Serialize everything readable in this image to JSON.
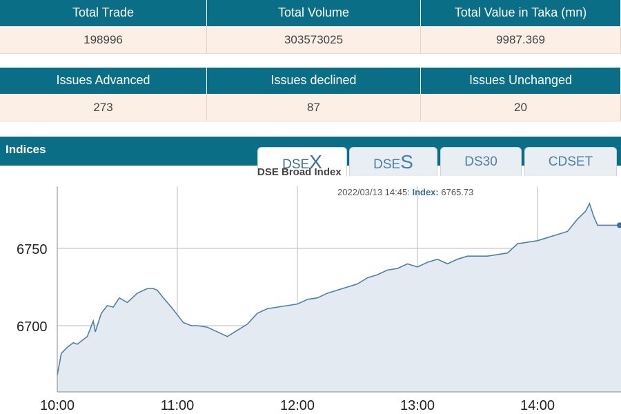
{
  "summary": {
    "headers": [
      "Total Trade",
      "Total Volume",
      "Total Value in Taka (mn)"
    ],
    "values": [
      "198996",
      "303573025",
      "9987.369"
    ]
  },
  "issues": {
    "headers": [
      "Issues Advanced",
      "Issues declined",
      "Issues Unchanged"
    ],
    "values": [
      "273",
      "87",
      "20"
    ]
  },
  "indices": {
    "title": "Indices",
    "tabs": [
      {
        "prefix": "DSE",
        "suffix": "X",
        "active": true
      },
      {
        "prefix": "DSE",
        "suffix": "S",
        "active": false
      },
      {
        "prefix": "DS30",
        "suffix": "",
        "active": false
      },
      {
        "prefix": "CDSET",
        "suffix": "",
        "active": false
      }
    ]
  },
  "tooltip": {
    "time": "2022/03/13 14:45:",
    "label": "Index:",
    "value": "6765.73"
  },
  "colors": {
    "header_bg": "#0a6f86",
    "cell_bg": "#fcf0e6",
    "line": "#4a7fb2",
    "area": "#e4eaf2"
  },
  "chart_data": {
    "type": "area",
    "title": "DSE Broad Index",
    "x_ticks": [
      "10:00",
      "11:00",
      "12:00",
      "13:00",
      "14:00"
    ],
    "y_ticks": [
      6700,
      6750
    ],
    "xlim": [
      "10:00",
      "14:45"
    ],
    "ylim": [
      6665,
      6785
    ],
    "grid": true,
    "series": [
      {
        "x": [
          "10:00",
          "10:02",
          "10:05",
          "10:08",
          "10:10",
          "10:15",
          "10:18",
          "10:19",
          "10:20",
          "10:22",
          "10:25",
          "10:28",
          "10:31",
          "10:35",
          "10:40",
          "10:45",
          "10:48",
          "10:50",
          "10:53",
          "10:57",
          "11:00",
          "11:03",
          "11:07",
          "11:10",
          "11:15",
          "11:20",
          "11:25",
          "11:30",
          "11:35",
          "11:40",
          "11:45",
          "11:50",
          "11:55",
          "12:00",
          "12:05",
          "12:10",
          "12:15",
          "12:20",
          "12:25",
          "12:30",
          "12:35",
          "12:40",
          "12:45",
          "12:50",
          "12:55",
          "13:00",
          "13:05",
          "13:10",
          "13:15",
          "13:20",
          "13:25",
          "13:30",
          "13:35",
          "13:40",
          "13:45",
          "13:50",
          "13:55",
          "14:00",
          "14:05",
          "14:10",
          "14:15",
          "14:20",
          "14:24",
          "14:26",
          "14:28",
          "14:30",
          "14:35",
          "14:40",
          "14:45"
        ],
        "values": [
          6668,
          6682,
          6686,
          6689,
          6688,
          6693,
          6703,
          6696,
          6700,
          6708,
          6713,
          6712,
          6718,
          6715,
          6721,
          6724,
          6724,
          6723,
          6718,
          6712,
          6707,
          6702,
          6700,
          6700,
          6699,
          6696,
          6693,
          6697,
          6701,
          6708,
          6711,
          6712,
          6713,
          6714,
          6717,
          6718,
          6721,
          6723,
          6725,
          6727,
          6731,
          6733,
          6736,
          6737,
          6740,
          6738,
          6741,
          6743,
          6740,
          6743,
          6745,
          6745,
          6745,
          6746,
          6747,
          6753,
          6754,
          6755,
          6757,
          6759,
          6761,
          6769,
          6774,
          6779,
          6771,
          6765,
          6765,
          6765,
          6765
        ]
      }
    ]
  }
}
